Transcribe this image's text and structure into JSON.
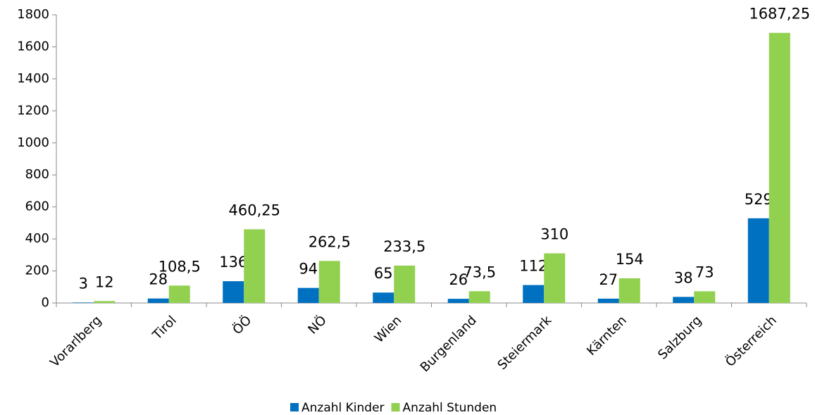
{
  "chart_data": {
    "type": "bar",
    "categories": [
      "Vorarlberg",
      "Tirol",
      "ÖÖ",
      "NÖ",
      "Wien",
      "Burgenland",
      "Steiermark",
      "Kärnten",
      "Salzburg",
      "Österreich"
    ],
    "series": [
      {
        "name": "Anzahl Kinder",
        "color": "#0070c0",
        "values": [
          3,
          28,
          136,
          94,
          65,
          26,
          112,
          27,
          38,
          529
        ]
      },
      {
        "name": "Anzahl Stunden",
        "color": "#92d050",
        "values": [
          12,
          108.5,
          460.25,
          262.5,
          233.5,
          73.5,
          310,
          154,
          73,
          1687.25
        ],
        "value_labels": [
          "12",
          "108,5",
          "460,25",
          "262,5",
          "233,5",
          "73,5",
          "310",
          "154",
          "73",
          "1687,25"
        ]
      }
    ],
    "ylim": [
      0,
      1800
    ],
    "yticks": [
      0,
      200,
      400,
      600,
      800,
      1000,
      1200,
      1400,
      1600,
      1800
    ],
    "grid": false,
    "legend": "bottom"
  }
}
